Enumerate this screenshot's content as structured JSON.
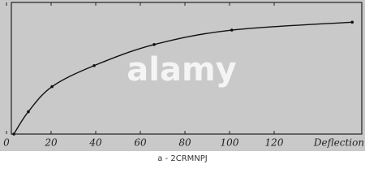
{
  "chart_data": {
    "type": "line",
    "x_label": "Deflection",
    "x": [
      3.3,
      9.8,
      20.4,
      39.3,
      66.2,
      101,
      155
    ],
    "series": [
      {
        "color": "#111111",
        "values": [
          0,
          17,
          36,
          52,
          68,
          79,
          85
        ]
      }
    ],
    "xlim": [
      0,
      160
    ],
    "ylim": [
      0,
      100
    ],
    "xticks": [
      0,
      20,
      40,
      60,
      80,
      100,
      120
    ],
    "watermark": "alamy",
    "stock_id": "a - 2CRMNPJ"
  }
}
